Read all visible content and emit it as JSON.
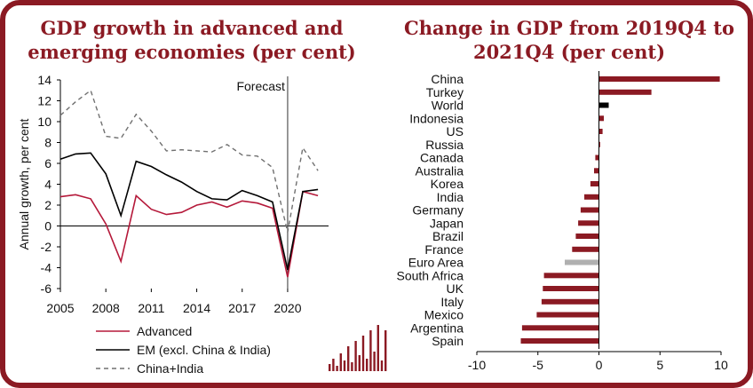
{
  "colors": {
    "brand": "#8b1a23",
    "advanced": "#b5193a",
    "em": "#000000",
    "china_india": "#707070",
    "world": "#000000",
    "euro_area": "#b0b0b0"
  },
  "chart_data": [
    {
      "type": "line",
      "title": "GDP growth in advanced and emerging economies (per cent)",
      "ylabel": "Annual growth, per cent",
      "xlabel": "",
      "xlim": [
        2005,
        2022.7
      ],
      "ylim": [
        -6,
        14
      ],
      "yticks": [
        -6,
        -4,
        -2,
        0,
        2,
        4,
        6,
        8,
        10,
        12,
        14
      ],
      "xticks": [
        2005,
        2008,
        2011,
        2014,
        2017,
        2020
      ],
      "annotation": "Forecast",
      "forecast_x": 2020,
      "legend_position": "bottom",
      "series": [
        {
          "name": "Advanced",
          "style": "solid",
          "color": "#b5193a",
          "x": [
            2005,
            2006,
            2007,
            2008,
            2009,
            2010,
            2011,
            2012,
            2013,
            2014,
            2015,
            2016,
            2017,
            2018,
            2019,
            2020,
            2021,
            2022
          ],
          "y": [
            2.8,
            3.0,
            2.6,
            0.2,
            -3.4,
            2.9,
            1.6,
            1.1,
            1.3,
            2.0,
            2.3,
            1.8,
            2.4,
            2.2,
            1.7,
            -4.9,
            3.3,
            2.9
          ]
        },
        {
          "name": "EM (excl. China & India)",
          "style": "solid",
          "color": "#000000",
          "x": [
            2005,
            2006,
            2007,
            2008,
            2009,
            2010,
            2011,
            2012,
            2013,
            2014,
            2015,
            2016,
            2017,
            2018,
            2019,
            2020,
            2021,
            2022
          ],
          "y": [
            6.4,
            6.9,
            7.0,
            5.0,
            1.0,
            6.2,
            5.7,
            4.9,
            4.2,
            3.3,
            2.6,
            2.5,
            3.4,
            2.9,
            2.3,
            -4.2,
            3.3,
            3.5
          ]
        },
        {
          "name": "China+India",
          "style": "dashed",
          "color": "#707070",
          "x": [
            2005,
            2006,
            2007,
            2008,
            2009,
            2010,
            2011,
            2012,
            2013,
            2014,
            2015,
            2016,
            2017,
            2018,
            2019,
            2020,
            2021,
            2022
          ],
          "y": [
            10.6,
            11.9,
            13.0,
            8.6,
            8.4,
            10.7,
            9.1,
            7.2,
            7.3,
            7.2,
            7.1,
            7.8,
            6.8,
            6.7,
            5.6,
            -0.6,
            7.5,
            5.3
          ]
        }
      ]
    },
    {
      "type": "bar",
      "orientation": "horizontal",
      "title": "Change in GDP from 2019Q4 to 2021Q4 (per cent)",
      "xlim": [
        -10,
        10
      ],
      "xticks": [
        -10,
        -5,
        0,
        5,
        10
      ],
      "categories": [
        "China",
        "Turkey",
        "World",
        "Indonesia",
        "US",
        "Russia",
        "Canada",
        "Australia",
        "Korea",
        "India",
        "Germany",
        "Japan",
        "Brazil",
        "France",
        "Euro Area",
        "South Africa",
        "UK",
        "Italy",
        "Mexico",
        "Argentina",
        "Spain"
      ],
      "values": [
        9.9,
        4.3,
        0.8,
        0.4,
        0.3,
        0.1,
        -0.3,
        -0.4,
        -0.7,
        -1.2,
        -1.5,
        -1.7,
        -1.9,
        -2.2,
        -2.8,
        -4.5,
        -4.6,
        -4.7,
        -5.1,
        -6.3,
        -6.4
      ],
      "highlight": {
        "World": "#000000",
        "Euro Area": "#b0b0b0"
      }
    }
  ]
}
